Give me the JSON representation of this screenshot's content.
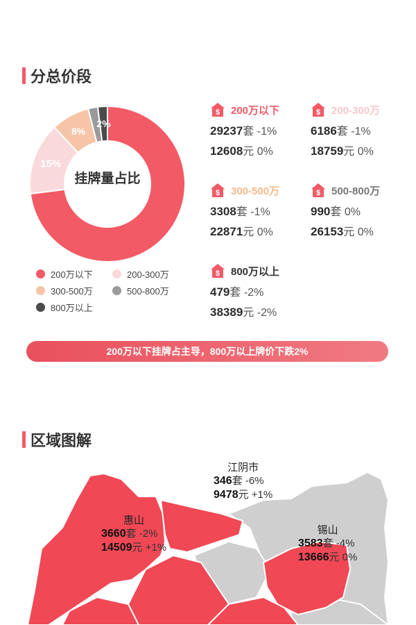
{
  "section1": {
    "title": "分总价段"
  },
  "chart_data": {
    "type": "pie",
    "center_label": "挂牌量占比",
    "categories": [
      "200万以下",
      "200-300万",
      "300-500万",
      "500-800万",
      "800万以上"
    ],
    "values": [
      73,
      15,
      8,
      2,
      2
    ],
    "slice_labels": [
      "73%",
      "15%",
      "8%",
      "",
      "2%"
    ],
    "colors": [
      "#f25a66",
      "#f9d9db",
      "#f6c4a6",
      "#9a9a9a",
      "#4a4a4a"
    ]
  },
  "legend": [
    {
      "label": "200万以下",
      "color": "#f25a66"
    },
    {
      "label": "200-300万",
      "color": "#f9d9db"
    },
    {
      "label": "300-500万",
      "color": "#f6c4a6"
    },
    {
      "label": "500-800万",
      "color": "#9a9a9a"
    },
    {
      "label": "800万以上",
      "color": "#4a4a4a"
    }
  ],
  "stats": [
    {
      "title": "200万以下",
      "title_color": "#f25a66",
      "count": "29237",
      "count_unit": "套",
      "count_change": " -1%",
      "price": "12608",
      "price_unit": "元",
      "price_change": " 0%"
    },
    {
      "title": "200-300万",
      "title_color": "#f9c7cb",
      "count": "6186",
      "count_unit": "套",
      "count_change": " -1%",
      "price": "18759",
      "price_unit": "元",
      "price_change": " 0%"
    },
    {
      "title": "300-500万",
      "title_color": "#f6b98c",
      "count": "3308",
      "count_unit": "套",
      "count_change": " -1%",
      "price": "22871",
      "price_unit": "元",
      "price_change": " 0%"
    },
    {
      "title": "500-800万",
      "title_color": "#777777",
      "count": "990",
      "count_unit": "套",
      "count_change": " 0%",
      "price": "26153",
      "price_unit": "元",
      "price_change": " 0%"
    },
    {
      "title": "800万以上",
      "title_color": "#333333",
      "count": "479",
      "count_unit": "套",
      "count_change": " -2%",
      "price": "38389",
      "price_unit": "元",
      "price_change": " -2%"
    }
  ],
  "banner": {
    "text": "200万以下挂牌占主导，800万以上牌价下跌2%"
  },
  "section2": {
    "title": "区域图解"
  },
  "regions": [
    {
      "name": "江阴市",
      "count": "346",
      "count_unit": "套",
      "count_change": " -6%",
      "price": "9478",
      "price_unit": "元",
      "price_change": " +1%"
    },
    {
      "name": "惠山",
      "count": "3660",
      "count_unit": "套",
      "count_change": " -2%",
      "price": "14509",
      "price_unit": "元",
      "price_change": " +1%"
    },
    {
      "name": "锡山",
      "count": "3583",
      "count_unit": "套",
      "count_change": " -4%",
      "price": "13666",
      "price_unit": "元",
      "price_change": " 0%"
    }
  ]
}
